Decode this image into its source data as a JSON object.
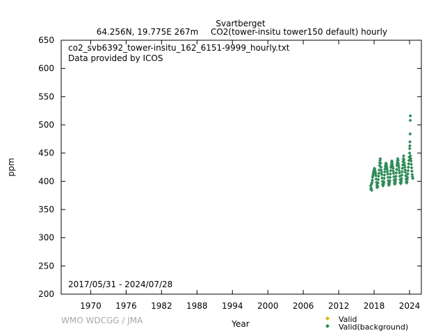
{
  "chart_data": {
    "type": "scatter",
    "title": "Svartberget",
    "subtitle_left": "64.256N, 19.775E 267m",
    "subtitle_right": "CO2(tower-insitu tower150 default) hourly",
    "xlabel": "Year",
    "ylabel": "ppm",
    "xlim": [
      1965,
      2026
    ],
    "ylim": [
      200,
      650
    ],
    "x_ticks": [
      1970,
      1976,
      1982,
      1988,
      1994,
      2000,
      2006,
      2012,
      2018,
      2024
    ],
    "y_ticks": [
      200,
      250,
      300,
      350,
      400,
      450,
      500,
      550,
      600,
      650
    ],
    "grid": false,
    "legend_position": "bottom-right",
    "file_label": "co2_svb6392_tower-insitu_162_6151-9999_hourly.txt",
    "provider_label": "Data provided by ICOS",
    "date_range_label": "2017/05/31 - 2024/07/28",
    "credit_label": "WMO WDCGG / JMA",
    "series": [
      {
        "name": "Valid",
        "color": "#e0b000",
        "marker": "diamond",
        "points": []
      },
      {
        "name": "Valid(background)",
        "color": "#2e8b57",
        "marker": "diamond",
        "points": [
          [
            2017.42,
            392
          ],
          [
            2017.45,
            386
          ],
          [
            2017.5,
            388
          ],
          [
            2017.55,
            395
          ],
          [
            2017.6,
            384
          ],
          [
            2017.65,
            398
          ],
          [
            2017.7,
            402
          ],
          [
            2017.75,
            407
          ],
          [
            2017.8,
            410
          ],
          [
            2017.85,
            413
          ],
          [
            2017.9,
            416
          ],
          [
            2017.95,
            418
          ],
          [
            2018.0,
            420
          ],
          [
            2018.05,
            423
          ],
          [
            2018.1,
            421
          ],
          [
            2018.15,
            418
          ],
          [
            2018.2,
            416
          ],
          [
            2018.25,
            413
          ],
          [
            2018.3,
            410
          ],
          [
            2018.35,
            404
          ],
          [
            2018.4,
            398
          ],
          [
            2018.45,
            393
          ],
          [
            2018.5,
            389
          ],
          [
            2018.55,
            392
          ],
          [
            2018.6,
            390
          ],
          [
            2018.65,
            397
          ],
          [
            2018.7,
            403
          ],
          [
            2018.75,
            409
          ],
          [
            2018.8,
            414
          ],
          [
            2018.85,
            420
          ],
          [
            2018.9,
            428
          ],
          [
            2018.95,
            433
          ],
          [
            2019.0,
            437
          ],
          [
            2019.05,
            440
          ],
          [
            2019.1,
            432
          ],
          [
            2019.15,
            425
          ],
          [
            2019.2,
            420
          ],
          [
            2019.25,
            416
          ],
          [
            2019.3,
            412
          ],
          [
            2019.35,
            406
          ],
          [
            2019.4,
            400
          ],
          [
            2019.45,
            395
          ],
          [
            2019.5,
            392
          ],
          [
            2019.55,
            394
          ],
          [
            2019.6,
            396
          ],
          [
            2019.65,
            399
          ],
          [
            2019.7,
            405
          ],
          [
            2019.75,
            411
          ],
          [
            2019.8,
            417
          ],
          [
            2019.85,
            422
          ],
          [
            2019.9,
            426
          ],
          [
            2019.95,
            429
          ],
          [
            2020.0,
            432
          ],
          [
            2020.05,
            430
          ],
          [
            2020.1,
            427
          ],
          [
            2020.15,
            424
          ],
          [
            2020.2,
            421
          ],
          [
            2020.25,
            417
          ],
          [
            2020.3,
            413
          ],
          [
            2020.35,
            407
          ],
          [
            2020.4,
            401
          ],
          [
            2020.45,
            396
          ],
          [
            2020.5,
            393
          ],
          [
            2020.55,
            395
          ],
          [
            2020.6,
            398
          ],
          [
            2020.65,
            401
          ],
          [
            2020.7,
            407
          ],
          [
            2020.75,
            413
          ],
          [
            2020.8,
            419
          ],
          [
            2020.85,
            425
          ],
          [
            2020.9,
            429
          ],
          [
            2020.95,
            433
          ],
          [
            2021.0,
            436
          ],
          [
            2021.05,
            434
          ],
          [
            2021.1,
            430
          ],
          [
            2021.15,
            426
          ],
          [
            2021.2,
            423
          ],
          [
            2021.25,
            418
          ],
          [
            2021.3,
            414
          ],
          [
            2021.35,
            408
          ],
          [
            2021.4,
            402
          ],
          [
            2021.45,
            397
          ],
          [
            2021.5,
            395
          ],
          [
            2021.55,
            397
          ],
          [
            2021.6,
            400
          ],
          [
            2021.65,
            404
          ],
          [
            2021.7,
            409
          ],
          [
            2021.75,
            415
          ],
          [
            2021.8,
            421
          ],
          [
            2021.85,
            428
          ],
          [
            2021.9,
            432
          ],
          [
            2021.95,
            436
          ],
          [
            2022.0,
            440
          ],
          [
            2022.05,
            437
          ],
          [
            2022.1,
            432
          ],
          [
            2022.15,
            428
          ],
          [
            2022.2,
            424
          ],
          [
            2022.25,
            419
          ],
          [
            2022.3,
            415
          ],
          [
            2022.35,
            409
          ],
          [
            2022.4,
            403
          ],
          [
            2022.45,
            398
          ],
          [
            2022.5,
            396
          ],
          [
            2022.55,
            398
          ],
          [
            2022.6,
            401
          ],
          [
            2022.65,
            405
          ],
          [
            2022.7,
            411
          ],
          [
            2022.75,
            417
          ],
          [
            2022.8,
            423
          ],
          [
            2022.85,
            429
          ],
          [
            2022.9,
            435
          ],
          [
            2022.95,
            440
          ],
          [
            2023.0,
            445
          ],
          [
            2023.05,
            438
          ],
          [
            2023.1,
            433
          ],
          [
            2023.15,
            429
          ],
          [
            2023.2,
            425
          ],
          [
            2023.25,
            420
          ],
          [
            2023.3,
            416
          ],
          [
            2023.35,
            410
          ],
          [
            2023.4,
            404
          ],
          [
            2023.45,
            399
          ],
          [
            2023.5,
            397
          ],
          [
            2023.55,
            399
          ],
          [
            2023.6,
            403
          ],
          [
            2023.65,
            407
          ],
          [
            2023.7,
            413
          ],
          [
            2023.75,
            419
          ],
          [
            2023.8,
            425
          ],
          [
            2023.85,
            431
          ],
          [
            2023.9,
            437
          ],
          [
            2023.95,
            443
          ],
          [
            2024.0,
            450
          ],
          [
            2024.02,
            458
          ],
          [
            2024.05,
            463
          ],
          [
            2024.07,
            470
          ],
          [
            2024.1,
            484
          ],
          [
            2024.12,
            508
          ],
          [
            2024.13,
            516
          ],
          [
            2024.15,
            445
          ],
          [
            2024.2,
            440
          ],
          [
            2024.25,
            436
          ],
          [
            2024.3,
            430
          ],
          [
            2024.35,
            424
          ],
          [
            2024.4,
            418
          ],
          [
            2024.45,
            412
          ],
          [
            2024.5,
            408
          ],
          [
            2024.55,
            405
          ]
        ]
      }
    ]
  }
}
